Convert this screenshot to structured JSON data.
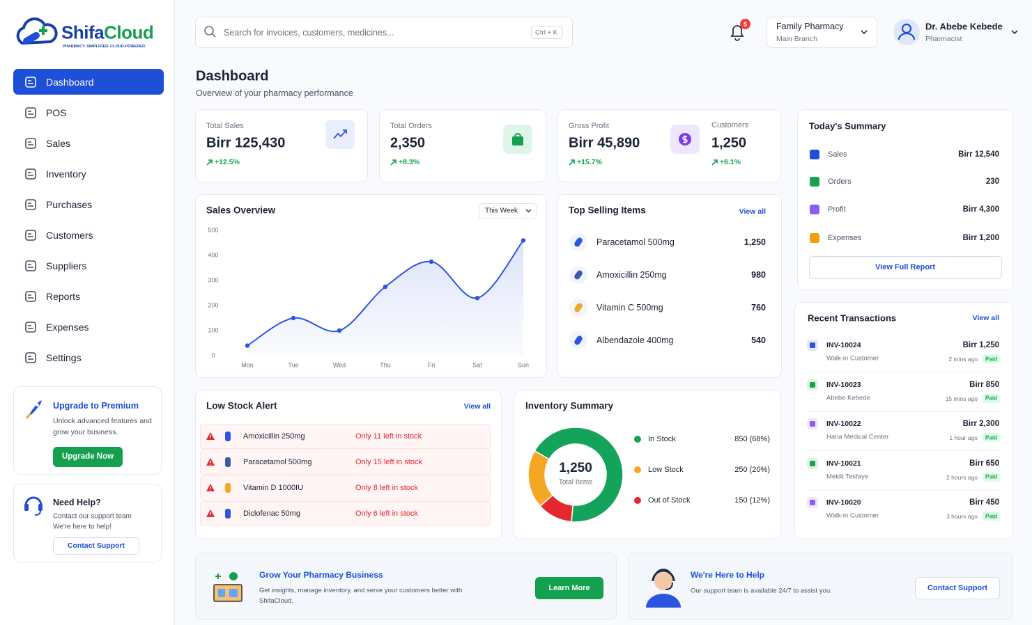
{
  "brand": {
    "name": [
      "Shifa",
      "Cloud"
    ],
    "tagline": "PHARMACY. SIMPLIFIED. CLOUD-POWERED."
  },
  "nav": [
    "Dashboard",
    "POS",
    "Sales",
    "Inventory",
    "Purchases",
    "Customers",
    "Suppliers",
    "Reports",
    "Expenses",
    "Settings"
  ],
  "upgrade": {
    "title": "Upgrade to Premium",
    "text": "Unlock advanced features and grow your business.",
    "button": "Upgrade Now"
  },
  "help": {
    "title": "Need Help?",
    "lines": [
      "Contact our support team",
      "We're here to help!"
    ],
    "button": "Contact Support"
  },
  "topbar": {
    "search": "Search for invoices, customers, medicines...",
    "shortcut": "Ctrl + K",
    "notifications": "5",
    "branch": {
      "name": "Family Pharmacy",
      "location": "Main Branch"
    },
    "user": {
      "name": "Dr. Abebe Kebede",
      "role": "Pharmacist"
    }
  },
  "header": {
    "title": "Dashboard",
    "subtitle": "Overview of your pharmacy performance"
  },
  "kpis": [
    {
      "label": "Total Sales",
      "value": "Birr 125,430",
      "change": "+12.5%"
    },
    {
      "label": "Total Orders",
      "value": "2,350",
      "change": "+8.3%"
    },
    {
      "label": "Gross Profit",
      "value": "Birr 45,890",
      "change": "+15.7%"
    },
    {
      "label": "Customers",
      "value": "1,250",
      "change": "+6.1%"
    }
  ],
  "summary": {
    "title": "Today's Summary",
    "items": [
      {
        "label": "Sales",
        "value": "Birr 12,540"
      },
      {
        "label": "Orders",
        "value": "230"
      },
      {
        "label": "Profit",
        "value": "Birr 4,300"
      },
      {
        "label": "Expenses",
        "value": "Birr 1,200"
      }
    ],
    "button": "View Full Report"
  },
  "chart_data": [
    {
      "type": "line",
      "title": "Sales Overview",
      "period": "This Week",
      "categories": [
        "Mon",
        "Tue",
        "Wed",
        "Thu",
        "Fri",
        "Sat",
        "Sun"
      ],
      "values": [
        40,
        150,
        100,
        275,
        375,
        230,
        460
      ],
      "color": "#2b55e0",
      "ylim": [
        0,
        500
      ],
      "yticks": [
        0,
        100,
        200,
        300,
        400,
        500
      ],
      "grid": false
    },
    {
      "type": "donut",
      "title": "Inventory Summary",
      "center_value": "1,250",
      "center_label": "Total Items",
      "categories": [
        "In Stock",
        "Low Stock",
        "Out of Stock"
      ],
      "values": [
        850,
        250,
        150
      ],
      "value_labels": [
        "850 (68%)",
        "250 (20%)",
        "150 (12%)"
      ],
      "colors": [
        "#14a35a",
        "#f5a623",
        "#e5282f"
      ]
    }
  ],
  "top_selling": {
    "title": "Top Selling Items",
    "link": "View all",
    "items": [
      {
        "name": "Paracetamol 500mg",
        "qty": "1,250"
      },
      {
        "name": "Amoxicillin 250mg",
        "qty": "980"
      },
      {
        "name": "Vitamin C 500mg",
        "qty": "760"
      },
      {
        "name": "Albendazole 400mg",
        "qty": "540"
      }
    ]
  },
  "low_stock": {
    "title": "Low Stock Alert",
    "link": "View all",
    "items": [
      {
        "name": "Amoxicillin 250mg",
        "note": "Only 11 left in stock"
      },
      {
        "name": "Paracetamol 500mg",
        "note": "Only 15 left in stock"
      },
      {
        "name": "Vitamin D 1000IU",
        "note": "Only 8 left in stock"
      },
      {
        "name": "Diclofenac 50mg",
        "note": "Only 6 left in stock"
      }
    ]
  },
  "recent": {
    "title": "Recent Transactions",
    "link": "View all",
    "items": [
      {
        "id": "INV-10024",
        "customer": "Walk-in Customer",
        "amount": "Birr 1,250",
        "time": "2 mins ago",
        "status": "Paid"
      },
      {
        "id": "INV-10023",
        "customer": "Abebe Kebede",
        "amount": "Birr 850",
        "time": "15 mins ago",
        "status": "Paid"
      },
      {
        "id": "INV-10022",
        "customer": "Hana Medical Center",
        "amount": "Birr 2,300",
        "time": "1 hour ago",
        "status": "Paid"
      },
      {
        "id": "INV-10021",
        "customer": "Meklit Tesfaye",
        "amount": "Birr 650",
        "time": "2 hours ago",
        "status": "Paid"
      },
      {
        "id": "INV-10020",
        "customer": "Walk-in Customer",
        "amount": "Birr 450",
        "time": "3 hours ago",
        "status": "Paid"
      }
    ]
  },
  "promos": [
    {
      "title": "Grow Your Pharmacy Business",
      "text": "Get insights, manage inventory, and serve your customers better with ShifaCloud.",
      "button": "Learn More"
    },
    {
      "title": "We're Here to Help",
      "text": "Our support team is available 24/7 to assist you.",
      "button": "Contact Support"
    }
  ]
}
